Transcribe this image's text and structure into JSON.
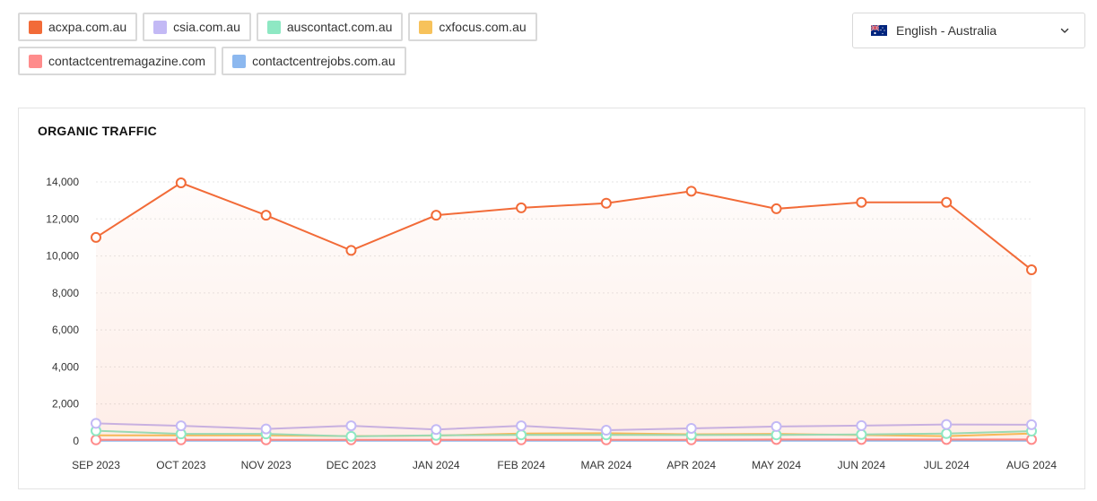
{
  "legend": {
    "items": [
      {
        "label": "acxpa.com.au",
        "color": "#F26B38"
      },
      {
        "label": "csia.com.au",
        "color": "#C3B9F5"
      },
      {
        "label": "auscontact.com.au",
        "color": "#8EE8C3"
      },
      {
        "label": "cxfocus.com.au",
        "color": "#F7C25B"
      },
      {
        "label": "contactcentremagazine.com",
        "color": "#FF8C8C"
      },
      {
        "label": "contactcentrejobs.com.au",
        "color": "#8CB8EF"
      }
    ]
  },
  "language": {
    "label": "English - Australia",
    "flag_icon": "australia-flag-icon",
    "chevron_icon": "chevron-down-icon"
  },
  "chart_data": {
    "type": "line",
    "title": "ORGANIC TRAFFIC",
    "x": [
      "SEP 2023",
      "OCT 2023",
      "NOV 2023",
      "DEC 2023",
      "JAN 2024",
      "FEB 2024",
      "MAR 2024",
      "APR 2024",
      "MAY 2024",
      "JUN 2024",
      "JUL 2024",
      "AUG 2024"
    ],
    "ylim": [
      0,
      14000
    ],
    "yticks": [
      0,
      2000,
      4000,
      6000,
      8000,
      10000,
      12000,
      14000
    ],
    "ytick_labels": [
      "0",
      "2,000",
      "4,000",
      "6,000",
      "8,000",
      "10,000",
      "12,000",
      "14,000"
    ],
    "grid": true,
    "series": [
      {
        "name": "acxpa.com.au",
        "color": "#F26B38",
        "markers": true,
        "area": true,
        "values": [
          11000,
          13950,
          12200,
          10300,
          12200,
          12600,
          12850,
          13500,
          12550,
          12900,
          12900,
          9250
        ]
      },
      {
        "name": "csia.com.au",
        "color": "#C3B9F5",
        "markers": true,
        "values": [
          950,
          820,
          650,
          820,
          620,
          820,
          580,
          680,
          780,
          830,
          890,
          880
        ]
      },
      {
        "name": "auscontact.com.au",
        "color": "#8EE8C3",
        "markers": true,
        "values": [
          550,
          380,
          380,
          250,
          300,
          330,
          330,
          320,
          330,
          350,
          400,
          530
        ]
      },
      {
        "name": "cxfocus.com.au",
        "color": "#F7C25B",
        "markers": false,
        "values": [
          300,
          300,
          300,
          260,
          290,
          400,
          420,
          360,
          380,
          320,
          260,
          400
        ]
      },
      {
        "name": "contactcentremagazine.com",
        "color": "#FF8C8C",
        "markers": true,
        "values": [
          60,
          60,
          60,
          60,
          60,
          60,
          60,
          60,
          80,
          80,
          80,
          80
        ]
      },
      {
        "name": "contactcentrejobs.com.au",
        "color": "#8CB8EF",
        "markers": false,
        "values": [
          10,
          10,
          10,
          10,
          10,
          10,
          10,
          10,
          10,
          10,
          10,
          10
        ]
      }
    ]
  }
}
